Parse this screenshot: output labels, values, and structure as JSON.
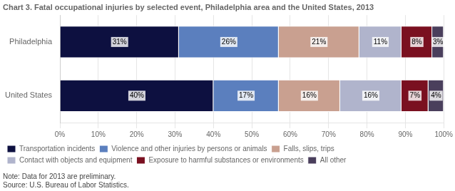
{
  "chart_data": {
    "type": "bar",
    "title": "Chart 3. Fatal occupational injuries by selected event, Philadelphia area and the United States, 2013",
    "orientation": "horizontal",
    "stacked": true,
    "categories": [
      "Philadelphia",
      "United States"
    ],
    "series": [
      {
        "name": "Transportation incidents",
        "color": "#0d1040",
        "values": [
          31,
          40
        ],
        "value_labels": [
          "31%",
          "40%"
        ]
      },
      {
        "name": "Violence and other injuries by persons or animals",
        "color": "#5b7fbe",
        "values": [
          26,
          17
        ],
        "value_labels": [
          "26%",
          "17%"
        ]
      },
      {
        "name": "Falls, slips, trips",
        "color": "#c9a090",
        "values": [
          21,
          16
        ],
        "value_labels": [
          "21%",
          "16%"
        ]
      },
      {
        "name": "Contact with objects and equipment",
        "color": "#b0b4cc",
        "values": [
          11,
          16
        ],
        "value_labels": [
          "11%",
          "16%"
        ]
      },
      {
        "name": "Exposure to harmful substances or environments",
        "color": "#7a1020",
        "values": [
          8,
          7
        ],
        "value_labels": [
          "8%",
          "7%"
        ]
      },
      {
        "name": "All other",
        "color": "#4a3f5c",
        "values": [
          3,
          4
        ],
        "value_labels": [
          "3%",
          "4%"
        ]
      }
    ],
    "xlim": [
      0,
      100
    ],
    "xticks": [
      {
        "value": 0,
        "label": "0%"
      },
      {
        "value": 10,
        "label": "10%"
      },
      {
        "value": 20,
        "label": "20%"
      },
      {
        "value": 30,
        "label": "30%"
      },
      {
        "value": 40,
        "label": "40%"
      },
      {
        "value": 50,
        "label": "50%"
      },
      {
        "value": 60,
        "label": "60%"
      },
      {
        "value": 70,
        "label": "70%"
      },
      {
        "value": 80,
        "label": "80%"
      },
      {
        "value": 90,
        "label": "90%"
      },
      {
        "value": 100,
        "label": "100%"
      }
    ],
    "grid": true,
    "legend": "bottom",
    "data_labels": true,
    "annotations": [
      "Note: Data for 2013 are preliminary.",
      "Source: U.S. Bureau of Labor Statistics."
    ]
  }
}
